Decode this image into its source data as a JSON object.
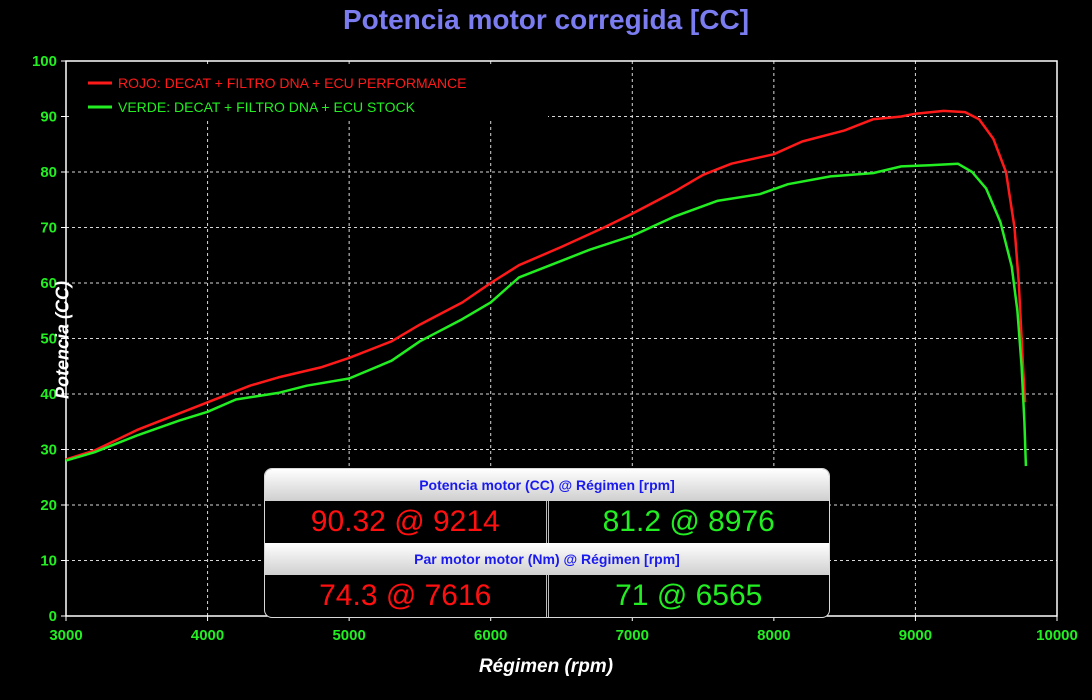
{
  "title": "Potencia motor corregida [CC]",
  "colors": {
    "red": "#ff1a1a",
    "green": "#22ee22",
    "title": "#7a7cf0",
    "grid": "#d8d8d8",
    "tick": "#22ee22"
  },
  "summary": {
    "header1": "Potencia motor (CC) @ Régimen [rpm]",
    "power_red": "90.32 @ 9214",
    "power_green": "81.2 @ 8976",
    "header2": "Par motor motor (Nm) @ Régimen [rpm]",
    "torque_red": "74.3 @ 7616",
    "torque_green": "71 @ 6565"
  },
  "chart_data": {
    "type": "line",
    "title": "Potencia motor corregida [CC]",
    "xlabel": "Régimen (rpm)",
    "ylabel": "Potencia (CC)",
    "xlim": [
      3000,
      10000
    ],
    "ylim": [
      0,
      100
    ],
    "xticks": [
      3000,
      4000,
      5000,
      6000,
      7000,
      8000,
      9000,
      10000
    ],
    "yticks": [
      0,
      10,
      20,
      30,
      40,
      50,
      60,
      70,
      80,
      90,
      100
    ],
    "grid": true,
    "legend_position": "top-left",
    "series": [
      {
        "name": "ROJO: DECAT + FILTRO DNA + ECU PERFORMANCE",
        "color": "#ff1a1a",
        "points": [
          [
            3000,
            28.2
          ],
          [
            3200,
            29.8
          ],
          [
            3500,
            33.5
          ],
          [
            4000,
            38.5
          ],
          [
            4300,
            41.5
          ],
          [
            4500,
            43
          ],
          [
            4800,
            44.8
          ],
          [
            5000,
            46.5
          ],
          [
            5300,
            49.5
          ],
          [
            5500,
            52.5
          ],
          [
            5800,
            56.5
          ],
          [
            6000,
            60
          ],
          [
            6200,
            63.2
          ],
          [
            6500,
            66.5
          ],
          [
            6800,
            70
          ],
          [
            7000,
            72.5
          ],
          [
            7300,
            76.5
          ],
          [
            7500,
            79.5
          ],
          [
            7700,
            81.5
          ],
          [
            8000,
            83.2
          ],
          [
            8200,
            85.5
          ],
          [
            8500,
            87.5
          ],
          [
            8700,
            89.5
          ],
          [
            8900,
            90
          ],
          [
            9000,
            90.5
          ],
          [
            9200,
            91
          ],
          [
            9350,
            90.8
          ],
          [
            9450,
            89.5
          ],
          [
            9550,
            86
          ],
          [
            9640,
            80
          ],
          [
            9700,
            70
          ],
          [
            9730,
            60
          ],
          [
            9760,
            45
          ],
          [
            9775,
            38.5
          ]
        ]
      },
      {
        "name": "VERDE: DECAT + FILTRO DNA + ECU STOCK",
        "color": "#22ee22",
        "points": [
          [
            3000,
            28
          ],
          [
            3200,
            29.5
          ],
          [
            3500,
            32.5
          ],
          [
            3800,
            35.2
          ],
          [
            4000,
            36.8
          ],
          [
            4200,
            39
          ],
          [
            4500,
            40.2
          ],
          [
            4700,
            41.5
          ],
          [
            5000,
            42.8
          ],
          [
            5300,
            46
          ],
          [
            5500,
            49.5
          ],
          [
            5800,
            53.5
          ],
          [
            6000,
            56.5
          ],
          [
            6200,
            61
          ],
          [
            6500,
            64
          ],
          [
            6700,
            66
          ],
          [
            7000,
            68.5
          ],
          [
            7300,
            72
          ],
          [
            7600,
            74.8
          ],
          [
            7900,
            76
          ],
          [
            8100,
            77.8
          ],
          [
            8400,
            79.2
          ],
          [
            8700,
            79.8
          ],
          [
            8900,
            81
          ],
          [
            9100,
            81.2
          ],
          [
            9300,
            81.5
          ],
          [
            9400,
            80
          ],
          [
            9500,
            77
          ],
          [
            9600,
            71
          ],
          [
            9680,
            63
          ],
          [
            9720,
            55
          ],
          [
            9750,
            45
          ],
          [
            9770,
            35
          ],
          [
            9780,
            27
          ]
        ]
      }
    ]
  }
}
